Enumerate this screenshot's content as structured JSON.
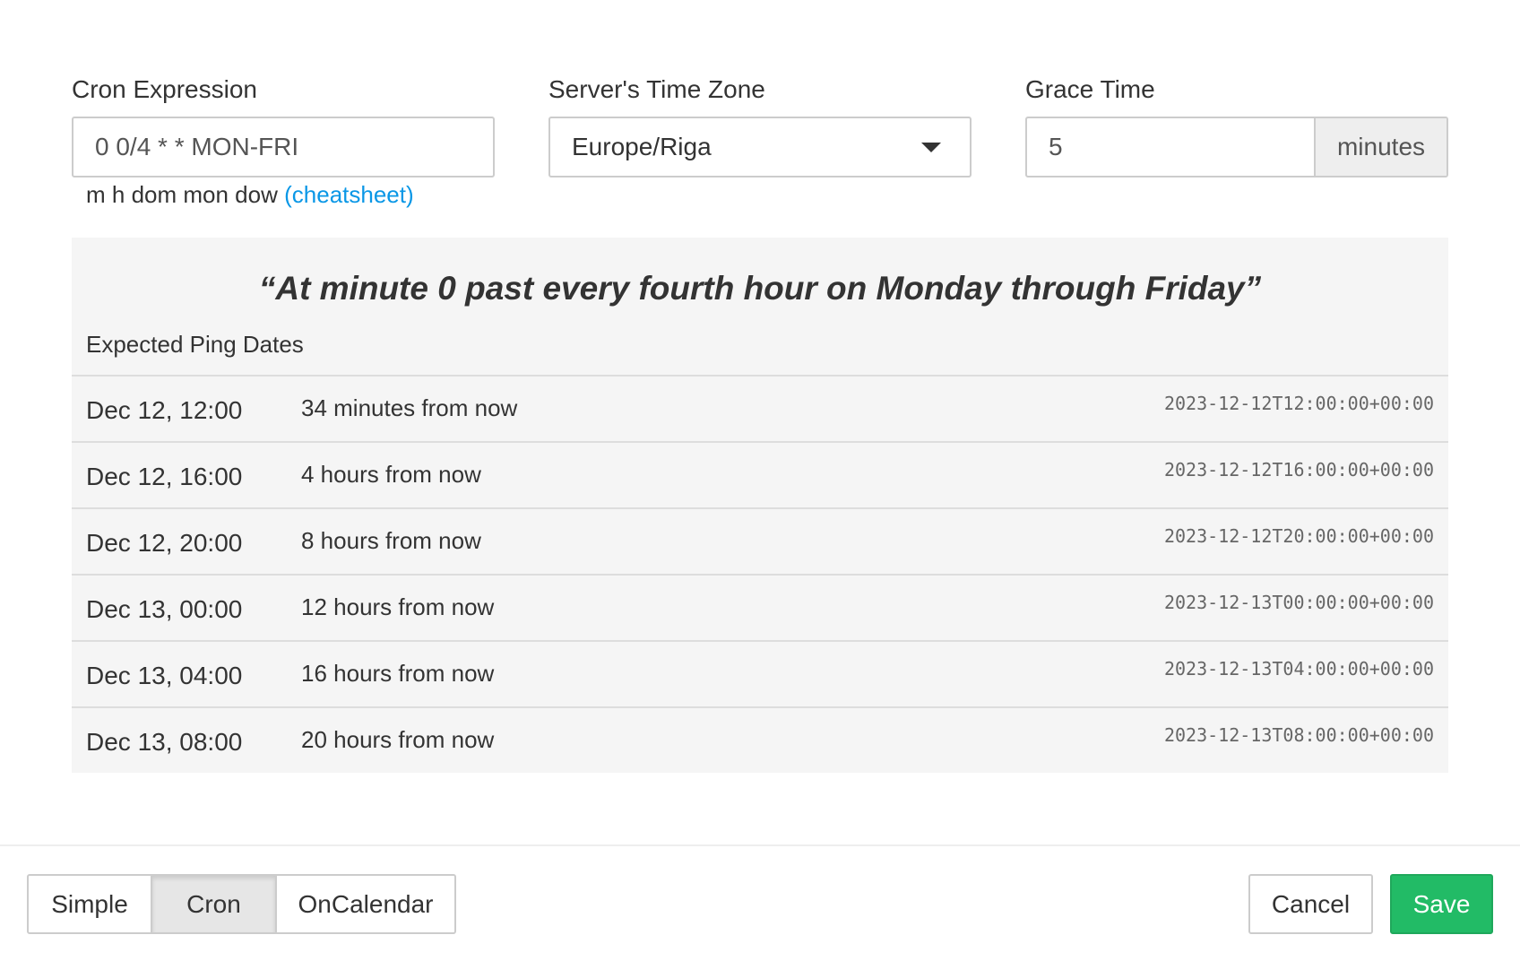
{
  "form": {
    "cron_label": "Cron Expression",
    "cron_value": "0 0/4 * * MON-FRI",
    "help_text": "m h dom mon dow",
    "cheatsheet_link": "(cheatsheet)",
    "tz_label": "Server's Time Zone",
    "tz_value": "Europe/Riga",
    "grace_label": "Grace Time",
    "grace_value": "5",
    "grace_unit": "minutes"
  },
  "preview": {
    "description": "“At minute 0 past every fourth hour on Monday through Friday”",
    "subtitle": "Expected Ping Dates",
    "rows": [
      {
        "date": "Dec 12, 12:00",
        "relative": "34 minutes from now",
        "iso": "2023-12-12T12:00:00+00:00"
      },
      {
        "date": "Dec 12, 16:00",
        "relative": "4 hours from now",
        "iso": "2023-12-12T16:00:00+00:00"
      },
      {
        "date": "Dec 12, 20:00",
        "relative": "8 hours from now",
        "iso": "2023-12-12T20:00:00+00:00"
      },
      {
        "date": "Dec 13, 00:00",
        "relative": "12 hours from now",
        "iso": "2023-12-13T00:00:00+00:00"
      },
      {
        "date": "Dec 13, 04:00",
        "relative": "16 hours from now",
        "iso": "2023-12-13T04:00:00+00:00"
      },
      {
        "date": "Dec 13, 08:00",
        "relative": "20 hours from now",
        "iso": "2023-12-13T08:00:00+00:00"
      }
    ]
  },
  "footer": {
    "simple": "Simple",
    "cron": "Cron",
    "oncalendar": "OnCalendar",
    "active_mode": "Cron",
    "cancel": "Cancel",
    "save": "Save",
    "save_color": "#22bb66",
    "link_color": "#0a97e6"
  }
}
